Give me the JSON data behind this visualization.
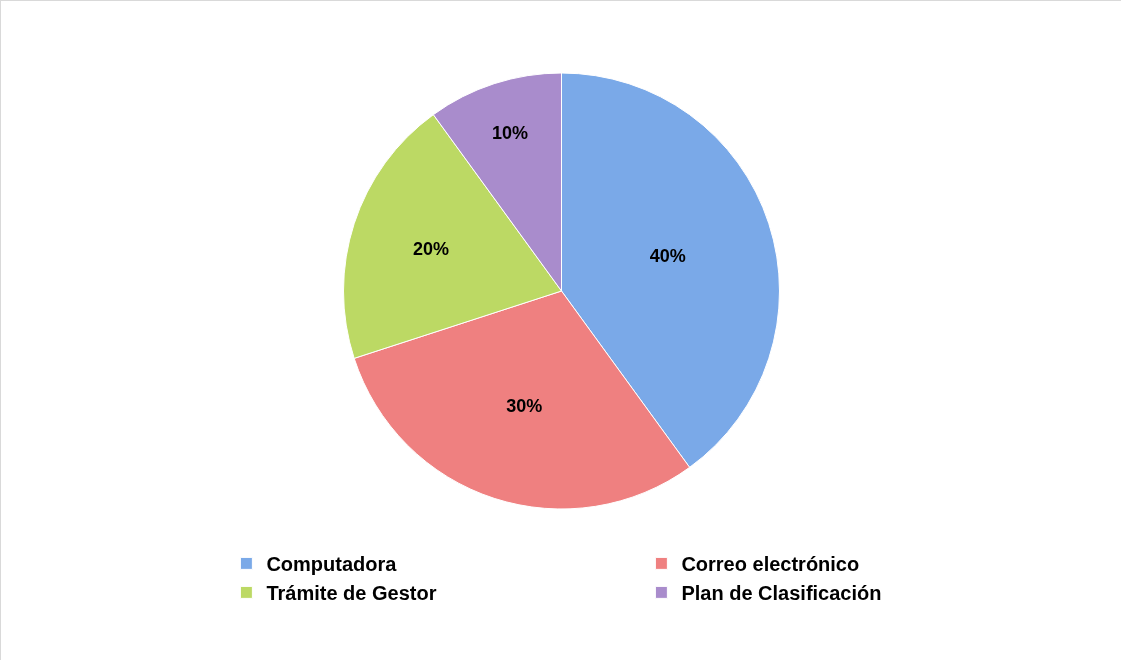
{
  "chart_data": {
    "type": "pie",
    "categories": [
      "Computadora",
      "Correo electrónico",
      "Trámite de Gestor",
      "Plan de Clasificación"
    ],
    "values": [
      40,
      30,
      20,
      10
    ],
    "colors": [
      "#7aa9e8",
      "#ef8080",
      "#bcd964",
      "#a98ccc"
    ],
    "value_labels": [
      "40%",
      "30%",
      "20%",
      "10%"
    ],
    "legend": "bottom"
  }
}
